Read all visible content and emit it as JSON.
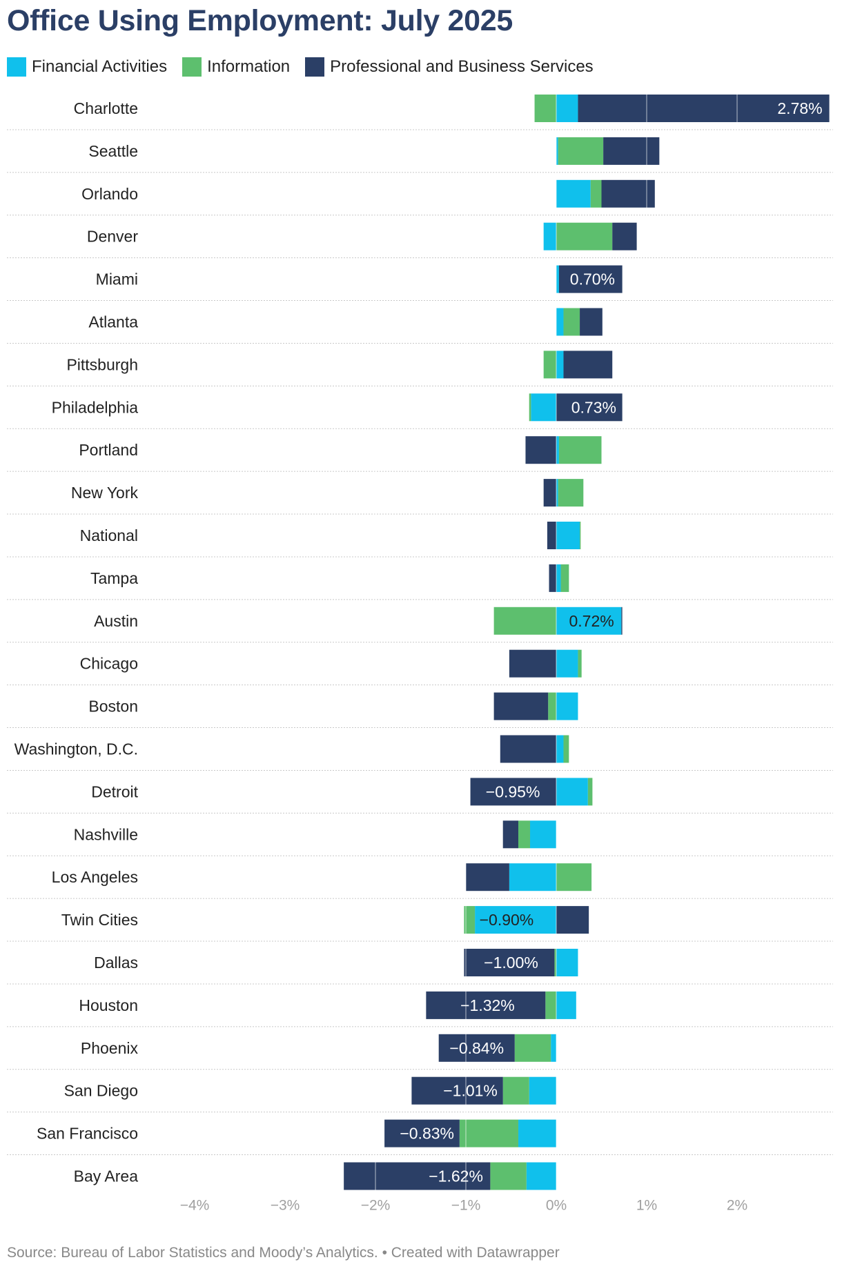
{
  "chart_data": {
    "type": "bar",
    "orientation": "horizontal-stacked",
    "title": "Office Using Employment: July 2025",
    "series_names": [
      "Financial Activities",
      "Information",
      "Professional and Business Services"
    ],
    "colors": {
      "Financial Activities": "#10c0ec",
      "Information": "#5dbf6e",
      "Professional and Business Services": "#2b3f66"
    },
    "xlim": [
      -4.4,
      3.0
    ],
    "xticks": [
      -4,
      -3,
      -2,
      -1,
      0,
      1,
      2
    ],
    "xtick_labels": [
      "−4%",
      "−3%",
      "−2%",
      "−1%",
      "0%",
      "1%",
      "2%"
    ],
    "rows": [
      {
        "category": "Charlotte",
        "fin": 0.24,
        "info": -0.24,
        "pbs": 2.78,
        "label": "2.78%"
      },
      {
        "category": "Seattle",
        "fin": 0.02,
        "info": 0.5,
        "pbs": 0.62,
        "label": ""
      },
      {
        "category": "Orlando",
        "fin": 0.38,
        "info": 0.12,
        "pbs": 0.59,
        "label": ""
      },
      {
        "category": "Denver",
        "fin": -0.14,
        "info": 0.62,
        "pbs": 0.27,
        "label": ""
      },
      {
        "category": "Miami",
        "fin": 0.03,
        "info": 0.0,
        "pbs": 0.7,
        "label": "0.70%"
      },
      {
        "category": "Atlanta",
        "fin": 0.08,
        "info": 0.18,
        "pbs": 0.25,
        "label": ""
      },
      {
        "category": "Pittsburgh",
        "fin": 0.08,
        "info": -0.14,
        "pbs": 0.54,
        "label": ""
      },
      {
        "category": "Philadelphia",
        "fin": -0.28,
        "info": -0.02,
        "pbs": 0.73,
        "label": "0.73%"
      },
      {
        "category": "Portland",
        "fin": 0.03,
        "info": 0.47,
        "pbs": -0.34,
        "label": ""
      },
      {
        "category": "New York",
        "fin": 0.02,
        "info": 0.28,
        "pbs": -0.14,
        "label": ""
      },
      {
        "category": "National",
        "fin": 0.26,
        "info": 0.01,
        "pbs": -0.1,
        "label": ""
      },
      {
        "category": "Tampa",
        "fin": 0.05,
        "info": 0.09,
        "pbs": -0.08,
        "label": ""
      },
      {
        "category": "Austin",
        "fin": 0.72,
        "info": -0.69,
        "pbs": 0.01,
        "label": "0.72%"
      },
      {
        "category": "Chicago",
        "fin": 0.24,
        "info": 0.04,
        "pbs": -0.52,
        "label": ""
      },
      {
        "category": "Boston",
        "fin": 0.24,
        "info": -0.09,
        "pbs": -0.6,
        "label": ""
      },
      {
        "category": "Washington, D.C.",
        "fin": 0.08,
        "info": 0.06,
        "pbs": -0.62,
        "label": ""
      },
      {
        "category": "Detroit",
        "fin": 0.35,
        "info": 0.05,
        "pbs": -0.95,
        "label": "−0.95%"
      },
      {
        "category": "Nashville",
        "fin": -0.29,
        "info": -0.13,
        "pbs": -0.17,
        "label": ""
      },
      {
        "category": "Los Angeles",
        "fin": -0.52,
        "info": 0.39,
        "pbs": -0.48,
        "label": ""
      },
      {
        "category": "Twin Cities",
        "fin": -0.9,
        "info": -0.12,
        "pbs": 0.36,
        "label": "−0.90%"
      },
      {
        "category": "Dallas",
        "fin": 0.24,
        "info": -0.02,
        "pbs": -1.0,
        "label": "−1.00%"
      },
      {
        "category": "Houston",
        "fin": 0.22,
        "info": -0.12,
        "pbs": -1.32,
        "label": "−1.32%"
      },
      {
        "category": "Phoenix",
        "fin": -0.06,
        "info": -0.4,
        "pbs": -0.84,
        "label": "−0.84%"
      },
      {
        "category": "San Diego",
        "fin": -0.3,
        "info": -0.29,
        "pbs": -1.01,
        "label": "−1.01%"
      },
      {
        "category": "San Francisco",
        "fin": -0.42,
        "info": -0.65,
        "pbs": -0.83,
        "label": "−0.83%"
      },
      {
        "category": "Bay Area",
        "fin": -0.33,
        "info": -0.4,
        "pbs": -1.62,
        "label": "−1.62%"
      }
    ]
  },
  "legend": [
    {
      "label": "Financial Activities",
      "color": "#10c0ec"
    },
    {
      "label": "Information",
      "color": "#5dbf6e"
    },
    {
      "label": "Professional and Business Services",
      "color": "#2b3f66"
    }
  ],
  "footer": {
    "source": "Source: Bureau of Labor Statistics and Moody’s Analytics. • Created with Datawrapper"
  }
}
